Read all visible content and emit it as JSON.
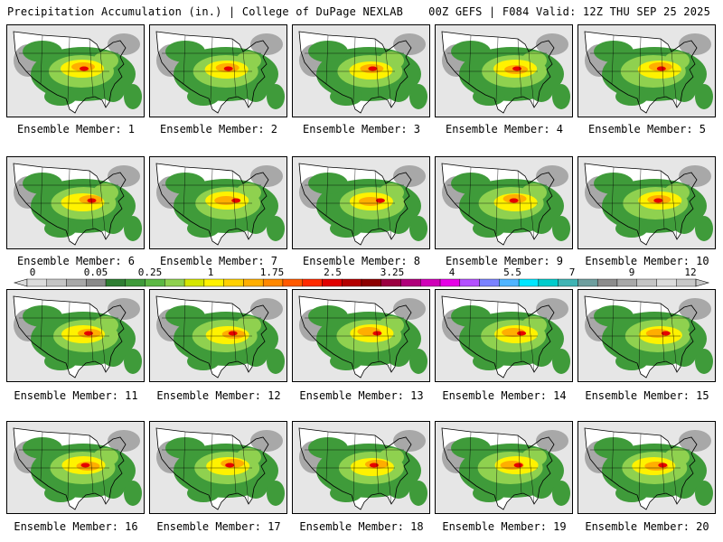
{
  "header": {
    "title": "Precipitation Accumulation (in.) | College of DuPage NEXLAB",
    "run_info": "00Z GEFS | F084 Valid: 12Z THU SEP 25 2025"
  },
  "members": [
    "Ensemble Member: 1",
    "Ensemble Member: 2",
    "Ensemble Member: 3",
    "Ensemble Member: 4",
    "Ensemble Member: 5",
    "Ensemble Member: 6",
    "Ensemble Member: 7",
    "Ensemble Member: 8",
    "Ensemble Member: 9",
    "Ensemble Member: 10",
    "Ensemble Member: 11",
    "Ensemble Member: 12",
    "Ensemble Member: 13",
    "Ensemble Member: 14",
    "Ensemble Member: 15",
    "Ensemble Member: 16",
    "Ensemble Member: 17",
    "Ensemble Member: 18",
    "Ensemble Member: 19",
    "Ensemble Member: 20"
  ],
  "colorbar": {
    "ticks": [
      "0",
      "0.05",
      "0.25",
      "1",
      "1.75",
      "2.5",
      "3.25",
      "4",
      "5.5",
      "7",
      "9",
      "12"
    ],
    "colors": [
      "#dcdcdc",
      "#c4c4c4",
      "#a8a8a8",
      "#8a8a8a",
      "#2e7d32",
      "#3f9b3a",
      "#5cb843",
      "#8fd14f",
      "#d4e600",
      "#fff200",
      "#ffd000",
      "#ffae00",
      "#ff8800",
      "#ff5a00",
      "#ff2a00",
      "#e00000",
      "#b40000",
      "#8c0000",
      "#9a0040",
      "#b0007a",
      "#d000b8",
      "#e600e6",
      "#b450ff",
      "#7a82ff",
      "#50b4ff",
      "#00e6ff",
      "#00cccc",
      "#40b4b4",
      "#6e9e9e",
      "#8c8c8c",
      "#a8a8a8",
      "#c4c4c4",
      "#dcdcdc",
      "#c8c8c8"
    ]
  },
  "map_colors": {
    "ocean": "#e6e6e6",
    "land_dry": "#ffffff",
    "trace": "#a8a8a8",
    "light": "#3f9b3a",
    "moderate": "#8fd14f",
    "heavy": "#fff200",
    "very_heavy": "#ffae00",
    "extreme": "#e60000"
  }
}
